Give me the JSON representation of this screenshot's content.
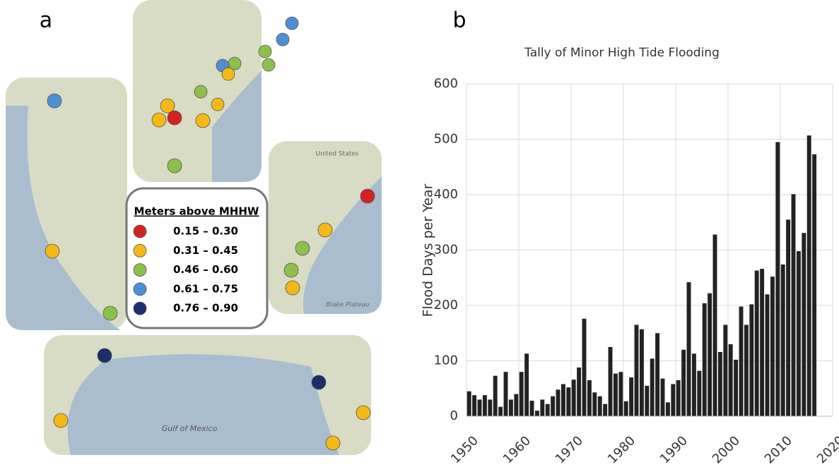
{
  "panels": {
    "a": "a",
    "b": "b"
  },
  "map_legend": {
    "title": "Meters above MHHW",
    "items": [
      {
        "label": "0.15 – 0.30",
        "color": "#d42222"
      },
      {
        "label": "0.31 – 0.45",
        "color": "#f4b914"
      },
      {
        "label": "0.46 – 0.60",
        "color": "#8dbf4c"
      },
      {
        "label": "0.61 – 0.75",
        "color": "#4d8fd4"
      },
      {
        "label": "0.76 – 0.90",
        "color": "#1d2d6b"
      }
    ]
  },
  "map_labels": [
    "United States",
    "Blake Plateau",
    "Gulf of Mexico"
  ],
  "chart_data": {
    "type": "bar",
    "title": "Tally of Minor High Tide Flooding",
    "ylabel": "Flood Days  per Year",
    "color": "#222222",
    "grid": true,
    "x": [
      1950,
      1951,
      1952,
      1953,
      1954,
      1955,
      1956,
      1957,
      1958,
      1959,
      1960,
      1961,
      1962,
      1963,
      1964,
      1965,
      1966,
      1967,
      1968,
      1969,
      1970,
      1971,
      1972,
      1973,
      1974,
      1975,
      1976,
      1977,
      1978,
      1979,
      1980,
      1981,
      1982,
      1983,
      1984,
      1985,
      1986,
      1987,
      1988,
      1989,
      1990,
      1991,
      1992,
      1993,
      1994,
      1995,
      1996,
      1997,
      1998,
      1999,
      2000,
      2001,
      2002,
      2003,
      2004,
      2005,
      2006,
      2007,
      2008,
      2009,
      2010,
      2011,
      2012,
      2013,
      2014,
      2015,
      2016
    ],
    "values": [
      45,
      38,
      30,
      38,
      30,
      73,
      17,
      80,
      30,
      40,
      80,
      113,
      28,
      10,
      30,
      22,
      36,
      48,
      58,
      52,
      66,
      88,
      176,
      65,
      43,
      36,
      22,
      125,
      77,
      80,
      27,
      70,
      165,
      157,
      55,
      104,
      150,
      68,
      25,
      58,
      65,
      120,
      242,
      113,
      82,
      204,
      222,
      328,
      116,
      165,
      130,
      102,
      198,
      165,
      202,
      263,
      266,
      220,
      252,
      495,
      274,
      355,
      401,
      298,
      331,
      507,
      473
    ],
    "xlim": [
      1950,
      2020
    ],
    "xticks": [
      1950,
      1960,
      1970,
      1980,
      1990,
      2000,
      2010,
      2020
    ],
    "ylim": [
      0,
      600
    ],
    "yticks": [
      0,
      100,
      200,
      300,
      400,
      500,
      600
    ]
  }
}
